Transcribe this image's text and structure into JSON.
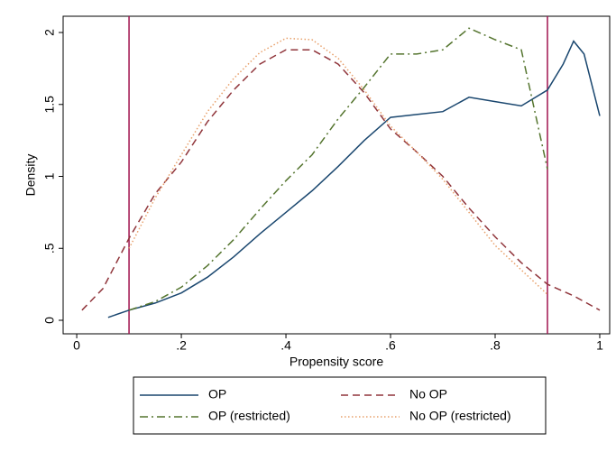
{
  "chart_data": {
    "type": "line",
    "x_label": "Propensity score",
    "y_label": "Density",
    "xlim": [
      -0.026,
      1.019
    ],
    "ylim": [
      -0.094,
      2.113
    ],
    "xticks": [
      0,
      {
        "value": 0.2,
        "label": ".2"
      },
      {
        "value": 0.4,
        "label": ".4"
      },
      {
        "value": 0.6,
        "label": ".6"
      },
      {
        "value": 0.8,
        "label": ".8"
      },
      1
    ],
    "yticks": [
      0,
      {
        "value": 0.5,
        "label": ".5"
      },
      1,
      1.5,
      2
    ],
    "xlines": [
      0.1,
      0.9
    ],
    "xline_color": "#a0134f",
    "series": [
      {
        "name": "OP",
        "color": "#1a476f",
        "style": "solid",
        "x": [
          0.06,
          0.1,
          0.15,
          0.2,
          0.25,
          0.3,
          0.35,
          0.4,
          0.45,
          0.5,
          0.55,
          0.6,
          0.65,
          0.7,
          0.75,
          0.8,
          0.85,
          0.9,
          0.93,
          0.95,
          0.97,
          1.0
        ],
        "values": [
          0.02,
          0.07,
          0.12,
          0.19,
          0.3,
          0.44,
          0.6,
          0.75,
          0.9,
          1.07,
          1.25,
          1.41,
          1.43,
          1.45,
          1.55,
          1.52,
          1.49,
          1.6,
          1.78,
          1.94,
          1.85,
          1.42
        ]
      },
      {
        "name": "No OP",
        "color": "#90353b",
        "style": "dash",
        "x": [
          0.01,
          0.05,
          0.1,
          0.15,
          0.2,
          0.25,
          0.3,
          0.35,
          0.4,
          0.45,
          0.5,
          0.55,
          0.6,
          0.65,
          0.7,
          0.75,
          0.8,
          0.85,
          0.9,
          0.95,
          1.0
        ],
        "values": [
          0.07,
          0.22,
          0.57,
          0.88,
          1.1,
          1.38,
          1.6,
          1.78,
          1.88,
          1.88,
          1.78,
          1.58,
          1.33,
          1.17,
          1.0,
          0.78,
          0.58,
          0.4,
          0.25,
          0.17,
          0.07
        ]
      },
      {
        "name": "OP (restricted)",
        "color": "#55752f",
        "style": "dashdot",
        "x": [
          0.1,
          0.15,
          0.2,
          0.25,
          0.3,
          0.35,
          0.4,
          0.45,
          0.5,
          0.55,
          0.6,
          0.65,
          0.7,
          0.75,
          0.8,
          0.85,
          0.9
        ],
        "values": [
          0.07,
          0.13,
          0.23,
          0.38,
          0.56,
          0.77,
          0.97,
          1.15,
          1.4,
          1.62,
          1.85,
          1.85,
          1.88,
          2.03,
          1.95,
          1.88,
          1.05
        ]
      },
      {
        "name": "No OP (restricted)",
        "color": "#e8a06a",
        "style": "dot",
        "x": [
          0.1,
          0.15,
          0.2,
          0.25,
          0.3,
          0.35,
          0.4,
          0.45,
          0.5,
          0.55,
          0.6,
          0.65,
          0.7,
          0.75,
          0.8,
          0.85,
          0.9
        ],
        "values": [
          0.5,
          0.85,
          1.15,
          1.45,
          1.68,
          1.86,
          1.96,
          1.95,
          1.82,
          1.6,
          1.35,
          1.17,
          0.98,
          0.75,
          0.52,
          0.35,
          0.18
        ]
      }
    ]
  }
}
